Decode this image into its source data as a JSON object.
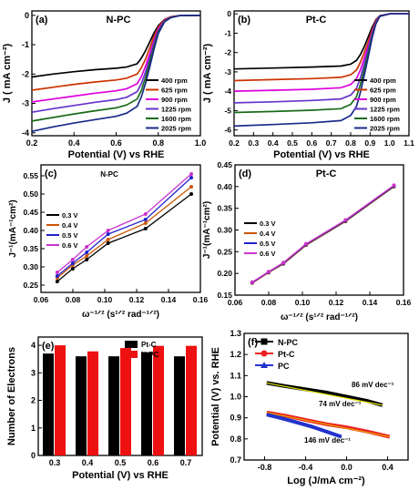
{
  "chart_data": [
    {
      "id": "a",
      "panel_label": "(a)",
      "title": "N-PC",
      "type": "line",
      "xlabel": "Potential (V) vs RHE",
      "ylabel": "J ( mA cm⁻²)",
      "xlim": [
        0.2,
        1.0
      ],
      "ylim": [
        -4.1,
        0.15
      ],
      "xticks": [
        "0.2",
        "0.4",
        "0.6",
        "0.8",
        "1.0"
      ],
      "yticks": [
        "0",
        "-1",
        "-2",
        "-3",
        "-4"
      ],
      "legend_position": "bottom-right",
      "series": [
        {
          "name": "400 rpm",
          "color": "#000000",
          "x": [
            0.2,
            0.3,
            0.4,
            0.5,
            0.6,
            0.65,
            0.7,
            0.72,
            0.74,
            0.76,
            0.78,
            0.8,
            0.83,
            0.86,
            0.9,
            1.0
          ],
          "y": [
            -2.1,
            -2.0,
            -1.92,
            -1.85,
            -1.8,
            -1.76,
            -1.65,
            -1.45,
            -1.2,
            -0.9,
            -0.6,
            -0.35,
            -0.14,
            -0.05,
            -0.01,
            0.0
          ]
        },
        {
          "name": "625 rpm",
          "color": "#cc3300",
          "x": [
            0.2,
            0.3,
            0.4,
            0.5,
            0.6,
            0.65,
            0.7,
            0.72,
            0.74,
            0.76,
            0.78,
            0.8,
            0.83,
            0.86,
            0.9,
            1.0
          ],
          "y": [
            -2.55,
            -2.45,
            -2.35,
            -2.27,
            -2.2,
            -2.14,
            -2.0,
            -1.78,
            -1.48,
            -1.1,
            -0.72,
            -0.4,
            -0.15,
            -0.05,
            -0.01,
            0.0
          ]
        },
        {
          "name": "900 rpm",
          "color": "#dd00dd",
          "x": [
            0.2,
            0.3,
            0.4,
            0.5,
            0.6,
            0.65,
            0.7,
            0.72,
            0.74,
            0.76,
            0.78,
            0.8,
            0.83,
            0.86,
            0.9,
            1.0
          ],
          "y": [
            -2.95,
            -2.85,
            -2.75,
            -2.65,
            -2.57,
            -2.5,
            -2.33,
            -2.08,
            -1.72,
            -1.3,
            -0.85,
            -0.46,
            -0.17,
            -0.06,
            -0.01,
            0.0
          ]
        },
        {
          "name": "1225 rpm",
          "color": "#6633cc",
          "x": [
            0.2,
            0.3,
            0.4,
            0.5,
            0.6,
            0.65,
            0.7,
            0.72,
            0.74,
            0.76,
            0.78,
            0.8,
            0.83,
            0.86,
            0.9,
            1.0
          ],
          "y": [
            -3.3,
            -3.18,
            -3.07,
            -2.96,
            -2.87,
            -2.79,
            -2.6,
            -2.32,
            -1.92,
            -1.45,
            -0.95,
            -0.52,
            -0.19,
            -0.07,
            -0.01,
            0.0
          ]
        },
        {
          "name": "1600 rpm",
          "color": "#1a6b1a",
          "x": [
            0.2,
            0.3,
            0.4,
            0.5,
            0.6,
            0.65,
            0.7,
            0.72,
            0.74,
            0.76,
            0.78,
            0.8,
            0.83,
            0.86,
            0.9,
            1.0
          ],
          "y": [
            -3.6,
            -3.48,
            -3.36,
            -3.25,
            -3.15,
            -3.05,
            -2.85,
            -2.55,
            -2.1,
            -1.6,
            -1.05,
            -0.57,
            -0.2,
            -0.07,
            -0.01,
            0.0
          ]
        },
        {
          "name": "2025 rpm",
          "color": "#1a2a88",
          "x": [
            0.2,
            0.3,
            0.4,
            0.5,
            0.6,
            0.65,
            0.7,
            0.72,
            0.74,
            0.76,
            0.78,
            0.8,
            0.83,
            0.86,
            0.9,
            1.0
          ],
          "y": [
            -3.95,
            -3.8,
            -3.67,
            -3.55,
            -3.44,
            -3.33,
            -3.1,
            -2.77,
            -2.3,
            -1.75,
            -1.15,
            -0.62,
            -0.22,
            -0.08,
            -0.01,
            0.0
          ]
        }
      ]
    },
    {
      "id": "b",
      "panel_label": "(b)",
      "title": "Pt-C",
      "type": "line",
      "xlabel": "Potential (V) vs RHE",
      "ylabel": "J ( mA cm⁻²)",
      "xlim": [
        0.2,
        1.1
      ],
      "ylim": [
        -6.3,
        0.15
      ],
      "xticks": [
        "0.2",
        "0.3",
        "0.4",
        "0.5",
        "0.6",
        "0.7",
        "0.8",
        "0.9",
        "1.0",
        "1.1"
      ],
      "yticks": [
        "0",
        "-1",
        "-2",
        "-3",
        "-4",
        "-5",
        "-6"
      ],
      "legend_position": "bottom-right",
      "series": [
        {
          "name": "400 rpm",
          "color": "#000000",
          "x": [
            0.2,
            0.4,
            0.6,
            0.75,
            0.8,
            0.83,
            0.85,
            0.87,
            0.89,
            0.91,
            0.93,
            0.95,
            1.0,
            1.1
          ],
          "y": [
            -2.85,
            -2.8,
            -2.75,
            -2.7,
            -2.6,
            -2.4,
            -2.1,
            -1.7,
            -1.2,
            -0.7,
            -0.3,
            -0.1,
            0.0,
            0.0
          ]
        },
        {
          "name": "625 rpm",
          "color": "#cc3300",
          "x": [
            0.2,
            0.4,
            0.6,
            0.75,
            0.8,
            0.83,
            0.85,
            0.87,
            0.89,
            0.91,
            0.93,
            0.95,
            1.0,
            1.1
          ],
          "y": [
            -3.45,
            -3.4,
            -3.35,
            -3.28,
            -3.15,
            -2.9,
            -2.5,
            -2.0,
            -1.45,
            -0.85,
            -0.35,
            -0.1,
            0.0,
            0.0
          ]
        },
        {
          "name": "900 rpm",
          "color": "#dd00dd",
          "x": [
            0.2,
            0.4,
            0.6,
            0.75,
            0.8,
            0.83,
            0.85,
            0.87,
            0.89,
            0.91,
            0.93,
            0.95,
            1.0,
            1.1
          ],
          "y": [
            -4.0,
            -3.95,
            -3.9,
            -3.82,
            -3.65,
            -3.35,
            -2.9,
            -2.3,
            -1.65,
            -0.95,
            -0.4,
            -0.11,
            0.0,
            0.0
          ]
        },
        {
          "name": "1225 rpm",
          "color": "#6633cc",
          "x": [
            0.2,
            0.4,
            0.6,
            0.75,
            0.8,
            0.83,
            0.85,
            0.87,
            0.89,
            0.91,
            0.93,
            0.95,
            1.0,
            1.1
          ],
          "y": [
            -4.6,
            -4.55,
            -4.48,
            -4.4,
            -4.2,
            -3.85,
            -3.3,
            -2.6,
            -1.85,
            -1.05,
            -0.45,
            -0.12,
            0.0,
            0.0
          ]
        },
        {
          "name": "1600 rpm",
          "color": "#1a6b1a",
          "x": [
            0.2,
            0.4,
            0.6,
            0.75,
            0.8,
            0.83,
            0.85,
            0.87,
            0.89,
            0.91,
            0.93,
            0.95,
            1.0,
            1.1
          ],
          "y": [
            -5.1,
            -5.05,
            -4.98,
            -4.9,
            -4.68,
            -4.28,
            -3.65,
            -2.88,
            -2.05,
            -1.15,
            -0.48,
            -0.12,
            0.0,
            0.0
          ]
        },
        {
          "name": "2025 rpm",
          "color": "#1a2a88",
          "x": [
            0.2,
            0.4,
            0.6,
            0.75,
            0.8,
            0.83,
            0.85,
            0.87,
            0.89,
            0.91,
            0.93,
            0.95,
            1.0,
            1.1
          ],
          "y": [
            -5.8,
            -5.72,
            -5.63,
            -5.52,
            -5.25,
            -4.78,
            -4.05,
            -3.18,
            -2.25,
            -1.25,
            -0.52,
            -0.13,
            0.0,
            0.0
          ]
        }
      ]
    },
    {
      "id": "c",
      "panel_label": "(c)",
      "title": "N-PC",
      "type": "line",
      "xlabel": "ω⁻¹ᐟ² (s¹ᐟ² rad⁻¹ᐟ²)",
      "ylabel": "J⁻¹(mA⁻¹cm²)",
      "xlim": [
        0.06,
        0.16
      ],
      "ylim": [
        0.23,
        0.58
      ],
      "xticks": [
        "0.06",
        "0.08",
        "0.10",
        "0.12",
        "0.14",
        "0.16"
      ],
      "yticks": [
        "0.25",
        "0.30",
        "0.35",
        "0.40",
        "0.45",
        "0.50",
        "0.55"
      ],
      "legend_position": "left",
      "series": [
        {
          "name": "0.3 V",
          "color": "#000000",
          "x": [
            0.0702,
            0.0799,
            0.0887,
            0.1021,
            0.1256,
            0.1543
          ],
          "y": [
            0.26,
            0.295,
            0.32,
            0.365,
            0.405,
            0.5
          ]
        },
        {
          "name": "0.4 V",
          "color": "#cc5500",
          "x": [
            0.0702,
            0.0799,
            0.0887,
            0.1021,
            0.1256,
            0.1543
          ],
          "y": [
            0.27,
            0.305,
            0.33,
            0.375,
            0.42,
            0.52
          ]
        },
        {
          "name": "0.5 V",
          "color": "#2222cc",
          "x": [
            0.0702,
            0.0799,
            0.0887,
            0.1021,
            0.1256,
            0.1543
          ],
          "y": [
            0.275,
            0.31,
            0.34,
            0.39,
            0.43,
            0.545
          ]
        },
        {
          "name": "0.6 V",
          "color": "#cc33cc",
          "x": [
            0.0702,
            0.0799,
            0.0887,
            0.1021,
            0.1256,
            0.1543
          ],
          "y": [
            0.285,
            0.32,
            0.355,
            0.4,
            0.445,
            0.555
          ]
        }
      ]
    },
    {
      "id": "d",
      "panel_label": "(d)",
      "title": "Pt-C",
      "type": "line",
      "xlabel": "ω⁻¹ᐟ² (s¹ᐟ² rad⁻¹ᐟ²)",
      "ylabel": "J⁻¹(mA⁻¹cm²)",
      "xlim": [
        0.06,
        0.16
      ],
      "ylim": [
        0.15,
        0.45
      ],
      "xticks": [
        "0.06",
        "0.08",
        "0.10",
        "0.12",
        "0.14",
        "0.16"
      ],
      "yticks": [
        "0.15",
        "0.20",
        "0.25",
        "0.30",
        "0.35",
        "0.40",
        "0.45"
      ],
      "legend_position": "left",
      "series": [
        {
          "name": "0.3 V",
          "color": "#000000",
          "x": [
            0.0702,
            0.0799,
            0.0887,
            0.1021,
            0.1256,
            0.1543
          ],
          "y": [
            0.178,
            0.202,
            0.222,
            0.265,
            0.32,
            0.4
          ]
        },
        {
          "name": "0.4 V",
          "color": "#cc5500",
          "x": [
            0.0702,
            0.0799,
            0.0887,
            0.1021,
            0.1256,
            0.1543
          ],
          "y": [
            0.178,
            0.202,
            0.223,
            0.266,
            0.321,
            0.401
          ]
        },
        {
          "name": "0.5 V",
          "color": "#2222cc",
          "x": [
            0.0702,
            0.0799,
            0.0887,
            0.1021,
            0.1256,
            0.1543
          ],
          "y": [
            0.179,
            0.203,
            0.224,
            0.267,
            0.322,
            0.402
          ]
        },
        {
          "name": "0.6 V",
          "color": "#cc33cc",
          "x": [
            0.0702,
            0.0799,
            0.0887,
            0.1021,
            0.1256,
            0.1543
          ],
          "y": [
            0.18,
            0.204,
            0.225,
            0.268,
            0.323,
            0.403
          ]
        }
      ]
    },
    {
      "id": "e",
      "panel_label": "(e)",
      "type": "bar",
      "xlabel": "Potential (V) vs RHE",
      "ylabel": "Number of Electrons",
      "categories": [
        "0.3",
        "0.4",
        "0.5",
        "0.6",
        "0.7"
      ],
      "ylim": [
        0,
        4.3
      ],
      "yticks": [
        "0",
        "1",
        "2",
        "3",
        "4"
      ],
      "legend_position": "top-right",
      "series": [
        {
          "name": "Pt-C",
          "color": "#000000",
          "values": [
            3.7,
            3.6,
            3.6,
            3.75,
            3.6
          ]
        },
        {
          "name": "N-PC",
          "color": "#ee1111",
          "values": [
            4.0,
            3.78,
            3.9,
            3.98,
            3.98
          ]
        }
      ]
    },
    {
      "id": "f",
      "panel_label": "(f)",
      "type": "line",
      "xlabel": "Log (J/mA cm⁻²)",
      "ylabel": "Potential (V) vs. RHE",
      "xlim": [
        -1.0,
        0.6
      ],
      "ylim": [
        0.7,
        1.3
      ],
      "xticks": [
        "-0.8",
        "-0.4",
        "0.0",
        "0.4"
      ],
      "yticks": [
        "0.7",
        "0.8",
        "0.9",
        "1.0",
        "1.1",
        "1.2",
        "1.3"
      ],
      "legend_position": "top-left",
      "annotations": [
        "86 mV dec⁻¹",
        "74 mV dec⁻¹",
        "146 mV dec⁻¹"
      ],
      "series": [
        {
          "name": "N-PC",
          "color": "#000000",
          "fit_color": "#e6e600",
          "x": [
            -0.78,
            -0.6,
            -0.4,
            -0.2,
            0.0,
            0.2,
            0.35
          ],
          "y": [
            1.065,
            1.05,
            1.035,
            1.02,
            1.0,
            0.98,
            0.96
          ]
        },
        {
          "name": "Pt-C",
          "color": "#ee2222",
          "fit_color": "#e6a000",
          "x": [
            -0.78,
            -0.6,
            -0.4,
            -0.2,
            0.0,
            0.2,
            0.42
          ],
          "y": [
            0.925,
            0.91,
            0.89,
            0.87,
            0.855,
            0.835,
            0.81
          ]
        },
        {
          "name": "PC",
          "color": "#2233cc",
          "fit_color": "#2233cc",
          "x": [
            -0.78,
            -0.65,
            -0.5,
            -0.35,
            -0.2,
            -0.05
          ],
          "y": [
            0.915,
            0.9,
            0.88,
            0.86,
            0.835,
            0.81
          ]
        }
      ]
    }
  ]
}
